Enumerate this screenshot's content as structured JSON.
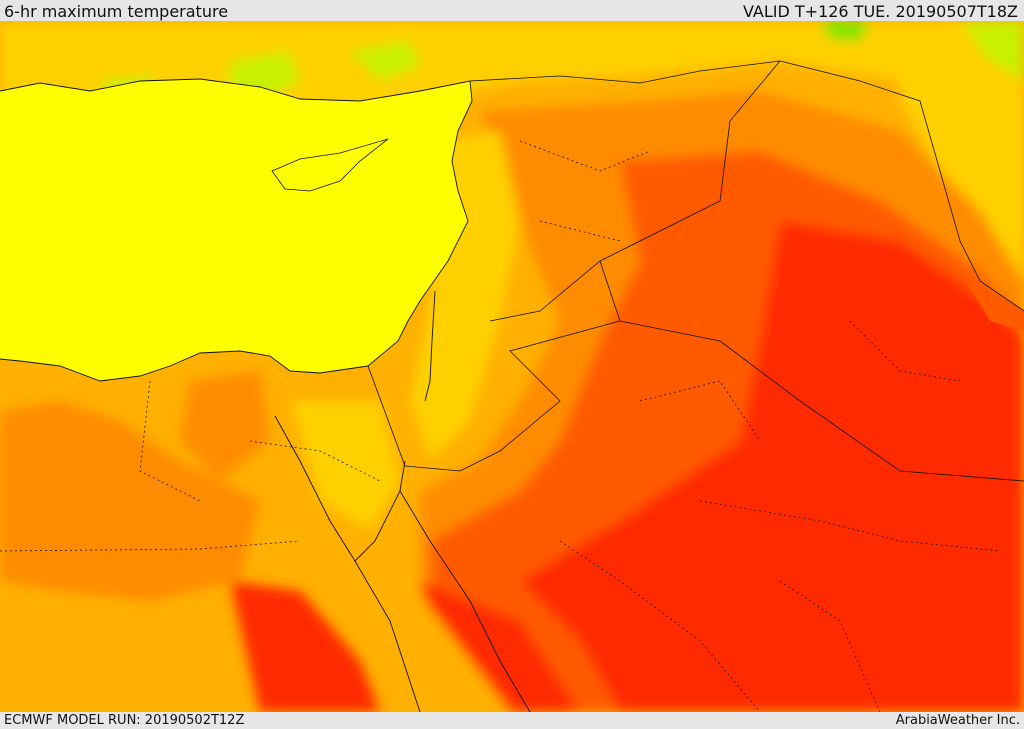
{
  "header": {
    "title": "6-hr maximum temperature",
    "valid": "VALID T+126 TUE. 20190507T18Z"
  },
  "footer": {
    "model_run": "ECMWF MODEL RUN: 20190502T12Z",
    "credit": "ArabiaWeather Inc."
  },
  "colors": {
    "band_green": "#7ee600",
    "band_lightgreen": "#c8f000",
    "band_yellow": "#ffff00",
    "band_goldyellow": "#ffd000",
    "band_amber": "#ffb000",
    "band_orange": "#ff8c00",
    "band_redorange": "#ff5a00",
    "band_red": "#ff2a00",
    "border_line": "#111111"
  }
}
